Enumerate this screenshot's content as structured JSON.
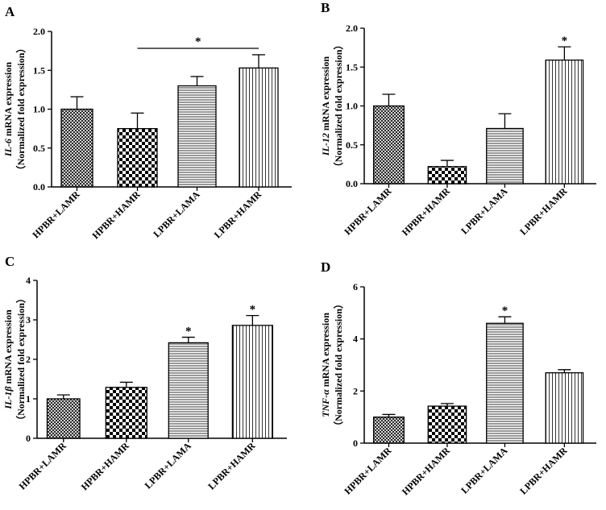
{
  "chart_data": [
    {
      "panel": "A",
      "type": "bar",
      "categories": [
        "HPBR+LAMR",
        "HPBR+HAMR",
        "LPBR+LAMA",
        "LPBR+HAMR"
      ],
      "values": [
        1.0,
        0.75,
        1.3,
        1.53
      ],
      "errors": [
        0.16,
        0.2,
        0.12,
        0.17
      ],
      "patterns": [
        "crosshatch",
        "checker",
        "hlines",
        "vlines"
      ],
      "ylabel_gene": "IL-6",
      "ylabel_rest": " mRNA expression",
      "ylabel_line2": "（Normalized fold expression）",
      "ylim": [
        0,
        2.0
      ],
      "yticks": [
        0.0,
        0.5,
        1.0,
        1.5,
        2.0
      ],
      "tick_decimals": 1,
      "significance": [
        {
          "from": 1,
          "to": 3,
          "label": "*"
        }
      ],
      "stars": []
    },
    {
      "panel": "B",
      "type": "bar",
      "categories": [
        "HPBR+LAMR",
        "HPBR+HAMR",
        "LPBR+LAMA",
        "LPBR+HAMR"
      ],
      "values": [
        1.0,
        0.22,
        0.71,
        1.59
      ],
      "errors": [
        0.15,
        0.08,
        0.19,
        0.17
      ],
      "patterns": [
        "crosshatch",
        "checker",
        "hlines",
        "vlines"
      ],
      "ylabel_gene": "IL-12",
      "ylabel_rest": " mRNA expression",
      "ylabel_line2": "（Normalized fold expression）",
      "ylim": [
        0,
        2.0
      ],
      "yticks": [
        0.0,
        0.5,
        1.0,
        1.5,
        2.0
      ],
      "tick_decimals": 1,
      "significance": [],
      "stars": [
        {
          "index": 3,
          "label": "*"
        }
      ]
    },
    {
      "panel": "C",
      "type": "bar",
      "categories": [
        "HPBR+LAMR",
        "HPBR+HAMR",
        "LPBR+LAMA",
        "LPBR+HAMR"
      ],
      "values": [
        1.0,
        1.29,
        2.42,
        2.86
      ],
      "errors": [
        0.1,
        0.13,
        0.14,
        0.25
      ],
      "patterns": [
        "crosshatch",
        "checker",
        "hlines",
        "vlines"
      ],
      "ylabel_gene": "IL-1β",
      "ylabel_rest": " mRNA expression",
      "ylabel_line2": "（Normalized fold expression）",
      "ylim": [
        0,
        4
      ],
      "yticks": [
        0,
        1,
        2,
        3,
        4
      ],
      "tick_decimals": 0,
      "significance": [],
      "stars": [
        {
          "index": 2,
          "label": "*"
        },
        {
          "index": 3,
          "label": "*"
        }
      ]
    },
    {
      "panel": "D",
      "type": "bar",
      "categories": [
        "HPBR+LAMR",
        "HPBR+HAMR",
        "LPBR+LAMA",
        "LPBR+HAMR"
      ],
      "values": [
        1.0,
        1.42,
        4.6,
        2.7
      ],
      "errors": [
        0.1,
        0.1,
        0.25,
        0.12
      ],
      "patterns": [
        "crosshatch",
        "checker",
        "hlines",
        "vlines"
      ],
      "ylabel_gene": "TNF-α",
      "ylabel_rest": " mRNA expression",
      "ylabel_line2": "（Normalized fold expression）",
      "ylim": [
        0,
        6
      ],
      "yticks": [
        0,
        2,
        4,
        6
      ],
      "tick_decimals": 0,
      "significance": [],
      "stars": [
        {
          "index": 2,
          "label": "*"
        }
      ]
    }
  ]
}
